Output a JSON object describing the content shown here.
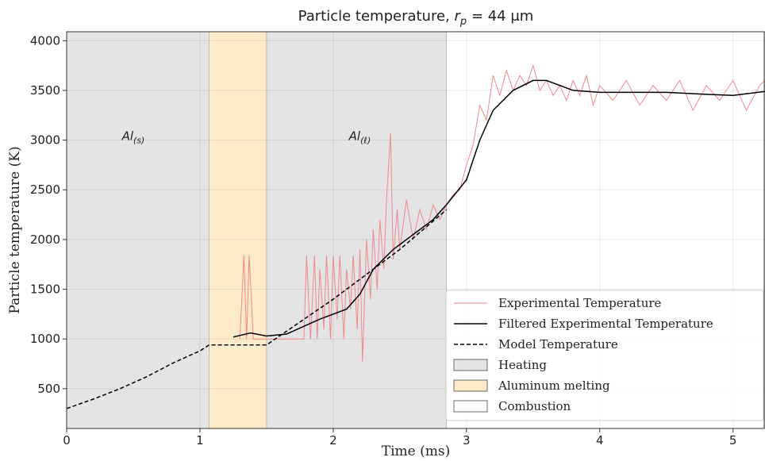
{
  "chart_data": {
    "type": "line",
    "title": {
      "prefix": "Particle temperature, ",
      "var": "r",
      "sub": "p",
      "suffix": " = 44 μm"
    },
    "xlabel": "Time (ms)",
    "ylabel": "Particle temperature (K)",
    "xlim": [
      0,
      5.24
    ],
    "ylim": [
      100,
      4090
    ],
    "xticks": [
      0,
      1,
      2,
      3,
      4,
      5
    ],
    "yticks": [
      500,
      1000,
      1500,
      2000,
      2500,
      3000,
      3500,
      4000
    ],
    "grid": true,
    "legend": "lower right",
    "annotations": [
      {
        "text": "Al",
        "sub": "(s)",
        "x": 0.5,
        "y": 3000
      },
      {
        "text": "Al",
        "sub": "(ℓ)",
        "x": 2.2,
        "y": 3000
      }
    ],
    "spans": [
      {
        "name": "Heating",
        "color": "#e4e4e4",
        "ranges": [
          [
            0,
            1.07
          ],
          [
            1.5,
            2.85
          ]
        ]
      },
      {
        "name": "Aluminum melting",
        "color": "#fdeac8",
        "ranges": [
          [
            1.07,
            1.5
          ]
        ]
      },
      {
        "name": "Combustion",
        "color": "#ffffff",
        "ranges": [
          [
            2.85,
            5.24
          ]
        ]
      }
    ],
    "series": [
      {
        "name": "Experimental Temperature",
        "color": "#f08a8a",
        "style": "solid",
        "width": 1,
        "x": [
          1.3,
          1.33,
          1.35,
          1.37,
          1.4,
          1.5,
          1.6,
          1.7,
          1.78,
          1.8,
          1.83,
          1.86,
          1.88,
          1.9,
          1.93,
          1.95,
          1.98,
          2.0,
          2.03,
          2.05,
          2.08,
          2.1,
          2.13,
          2.15,
          2.18,
          2.2,
          2.22,
          2.25,
          2.28,
          2.3,
          2.33,
          2.35,
          2.38,
          2.4,
          2.43,
          2.45,
          2.48,
          2.5,
          2.55,
          2.6,
          2.65,
          2.7,
          2.75,
          2.8,
          2.85,
          2.9,
          2.95,
          3.0,
          3.05,
          3.1,
          3.15,
          3.2,
          3.25,
          3.3,
          3.35,
          3.4,
          3.45,
          3.5,
          3.55,
          3.6,
          3.65,
          3.7,
          3.75,
          3.8,
          3.85,
          3.9,
          3.95,
          4.0,
          4.1,
          4.2,
          4.3,
          4.4,
          4.5,
          4.6,
          4.7,
          4.8,
          4.9,
          5.0,
          5.1,
          5.2,
          5.24
        ],
        "values": [
          1000,
          1840,
          1000,
          1840,
          1000,
          1000,
          1000,
          1000,
          1000,
          1840,
          1000,
          1840,
          1000,
          1700,
          1100,
          1840,
          1000,
          1840,
          1200,
          1840,
          1000,
          1700,
          1300,
          1840,
          1100,
          1900,
          770,
          2000,
          1400,
          2100,
          1500,
          2200,
          1700,
          2400,
          3070,
          1800,
          2300,
          1900,
          2400,
          2000,
          2300,
          2100,
          2350,
          2200,
          2350,
          2450,
          2500,
          2750,
          2950,
          3350,
          3200,
          3650,
          3450,
          3700,
          3500,
          3650,
          3550,
          3750,
          3500,
          3600,
          3450,
          3550,
          3400,
          3600,
          3450,
          3650,
          3350,
          3550,
          3400,
          3600,
          3350,
          3550,
          3400,
          3600,
          3300,
          3550,
          3400,
          3600,
          3300,
          3550,
          3600
        ]
      },
      {
        "name": "Filtered Experimental Temperature",
        "color": "#000000",
        "style": "solid",
        "width": 1.5,
        "x": [
          1.25,
          1.38,
          1.5,
          1.65,
          1.9,
          2.1,
          2.2,
          2.3,
          2.45,
          2.6,
          2.75,
          2.85,
          3.0,
          3.1,
          3.2,
          3.35,
          3.5,
          3.6,
          3.8,
          4.0,
          4.5,
          4.8,
          5.0,
          5.24
        ],
        "values": [
          1020,
          1060,
          1030,
          1050,
          1200,
          1300,
          1450,
          1700,
          1900,
          2050,
          2200,
          2350,
          2600,
          3000,
          3300,
          3500,
          3600,
          3600,
          3500,
          3480,
          3480,
          3460,
          3450,
          3490
        ]
      },
      {
        "name": "Model Temperature",
        "color": "#000000",
        "style": "dashed",
        "width": 1.5,
        "x": [
          0,
          0.2,
          0.4,
          0.6,
          0.8,
          1.0,
          1.07,
          1.5,
          2.0,
          2.5,
          2.85
        ],
        "values": [
          300,
          395,
          500,
          620,
          760,
          880,
          940,
          940,
          1400,
          1900,
          2300
        ]
      }
    ]
  }
}
